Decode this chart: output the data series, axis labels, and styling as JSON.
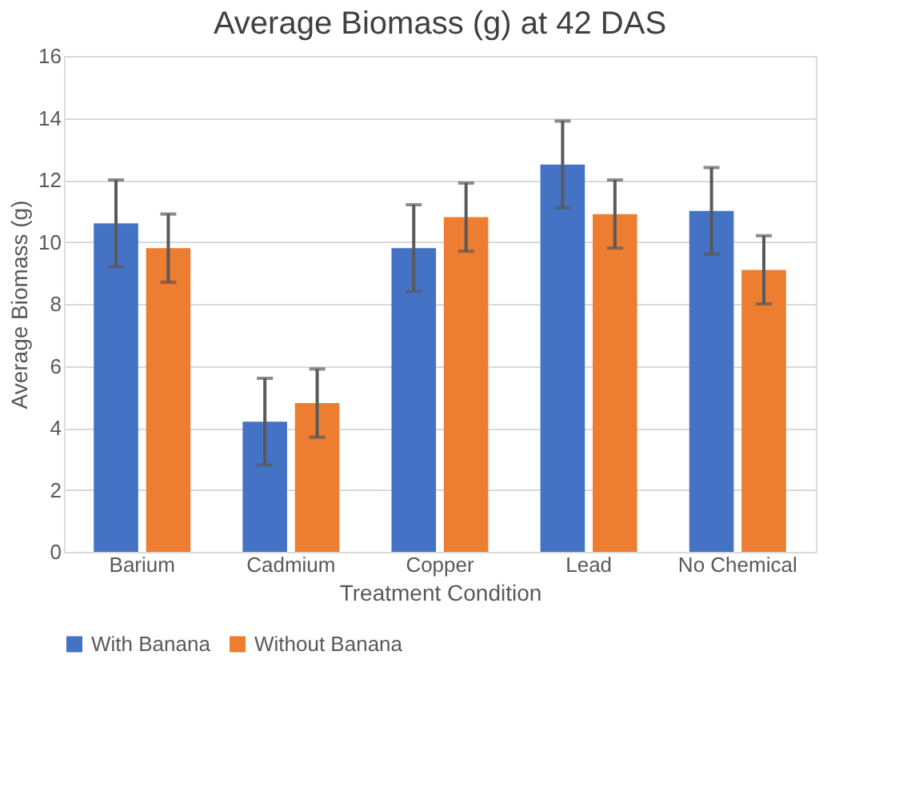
{
  "chart_data": {
    "type": "bar",
    "title": "Average Biomass (g) at 42 DAS",
    "xlabel": "Treatment Condition",
    "ylabel": "Average Biomass (g)",
    "categories": [
      "Barium",
      "Cadmium",
      "Copper",
      "Lead",
      "No Chemical"
    ],
    "series": [
      {
        "name": "With Banana",
        "color": "#4472c4",
        "values": [
          10.6,
          4.2,
          9.8,
          12.5,
          11.0
        ],
        "errors": [
          1.4,
          1.4,
          1.4,
          1.4,
          1.4
        ]
      },
      {
        "name": "Without Banana",
        "color": "#ed7d31",
        "values": [
          9.8,
          4.8,
          10.8,
          10.9,
          9.1
        ],
        "errors": [
          1.1,
          1.1,
          1.1,
          1.1,
          1.1
        ]
      }
    ],
    "ylim": [
      0,
      16
    ],
    "yticks": [
      0,
      2,
      4,
      6,
      8,
      10,
      12,
      14,
      16
    ],
    "grid": "y",
    "legend": "bottom"
  }
}
